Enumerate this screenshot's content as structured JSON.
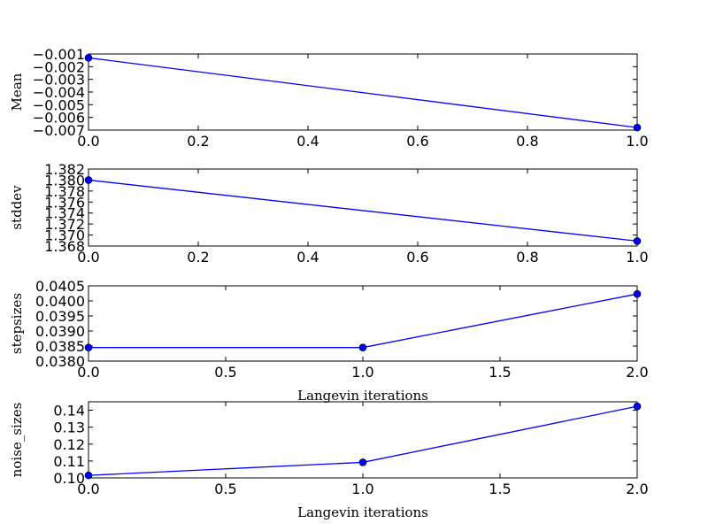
{
  "chart_data": [
    {
      "type": "line",
      "ylabel": "Mean",
      "xlabel": "",
      "x": [
        0,
        1
      ],
      "y": [
        -0.0013,
        -0.0068
      ],
      "xlim": [
        0,
        1
      ],
      "ylim": [
        -0.007,
        -0.001
      ],
      "xticks": [
        0,
        0.2,
        0.4,
        0.6,
        0.8,
        1.0
      ],
      "xticklabels": [
        "0.0",
        "0.2",
        "0.4",
        "0.6",
        "0.8",
        "1.0"
      ],
      "yticks": [
        -0.007,
        -0.006,
        -0.005,
        -0.004,
        -0.003,
        -0.002,
        -0.001
      ],
      "yticklabels": [
        "−0.007",
        "−0.006",
        "−0.005",
        "−0.004",
        "−0.003",
        "−0.002",
        "−0.001"
      ],
      "color": "#0000ff",
      "marker": "circle",
      "grid": false
    },
    {
      "type": "line",
      "ylabel": "stddev",
      "xlabel": "",
      "x": [
        0,
        1
      ],
      "y": [
        1.38,
        1.3689
      ],
      "xlim": [
        0,
        1
      ],
      "ylim": [
        1.368,
        1.382
      ],
      "xticks": [
        0,
        0.2,
        0.4,
        0.6,
        0.8,
        1.0
      ],
      "xticklabels": [
        "0.0",
        "0.2",
        "0.4",
        "0.6",
        "0.8",
        "1.0"
      ],
      "yticks": [
        1.368,
        1.37,
        1.372,
        1.374,
        1.376,
        1.378,
        1.38,
        1.382
      ],
      "yticklabels": [
        "1.368",
        "1.370",
        "1.372",
        "1.374",
        "1.376",
        "1.378",
        "1.380",
        "1.382"
      ],
      "color": "#0000ff",
      "marker": "circle",
      "grid": false
    },
    {
      "type": "line",
      "ylabel": "stepsizes",
      "xlabel": "Langevin iterations",
      "x": [
        0,
        1,
        2
      ],
      "y": [
        0.03845,
        0.03845,
        0.04023
      ],
      "xlim": [
        0,
        2
      ],
      "ylim": [
        0.038,
        0.0405
      ],
      "xticks": [
        0,
        0.5,
        1.0,
        1.5,
        2.0
      ],
      "xticklabels": [
        "0.0",
        "0.5",
        "1.0",
        "1.5",
        "2.0"
      ],
      "yticks": [
        0.038,
        0.0385,
        0.039,
        0.0395,
        0.04,
        0.0405
      ],
      "yticklabels": [
        "0.0380",
        "0.0385",
        "0.0390",
        "0.0395",
        "0.0400",
        "0.0405"
      ],
      "color": "#0000ff",
      "marker": "circle",
      "grid": false
    },
    {
      "type": "line",
      "ylabel": "noise_sizes",
      "xlabel": "Langevin iterations",
      "x": [
        0,
        1,
        2
      ],
      "y": [
        0.1015,
        0.1092,
        0.1423
      ],
      "xlim": [
        0,
        2
      ],
      "ylim": [
        0.1,
        0.145
      ],
      "xticks": [
        0,
        0.5,
        1.0,
        1.5,
        2.0
      ],
      "xticklabels": [
        "0.0",
        "0.5",
        "1.0",
        "1.5",
        "2.0"
      ],
      "yticks": [
        0.1,
        0.11,
        0.12,
        0.13,
        0.14
      ],
      "yticklabels": [
        "0.10",
        "0.11",
        "0.12",
        "0.13",
        "0.14"
      ],
      "color": "#0000ff",
      "marker": "circle",
      "grid": false
    }
  ]
}
